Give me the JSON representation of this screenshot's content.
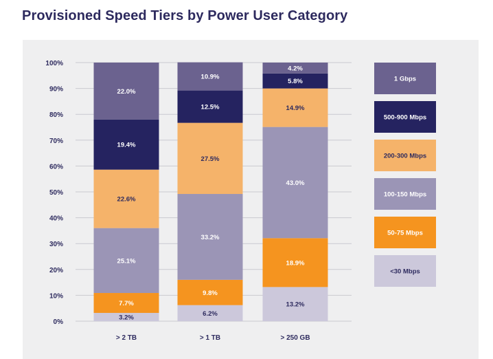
{
  "chart_data": {
    "type": "bar",
    "stacked": true,
    "title": "Provisioned Speed Tiers by Power User Category",
    "categories": [
      "> 2 TB",
      "> 1 TB",
      "> 250 GB"
    ],
    "ylim": [
      0,
      100
    ],
    "yticks": [
      "0%",
      "10%",
      "20%",
      "30%",
      "40%",
      "50%",
      "60%",
      "70%",
      "80%",
      "90%",
      "100%"
    ],
    "grid": true,
    "legend_position": "right",
    "series": [
      {
        "name": "<30 Mbps",
        "color": "#ccc8db",
        "label_color": "#2d2a5e",
        "values": [
          3.2,
          6.2,
          13.2
        ],
        "labels": [
          "3.2%",
          "6.2%",
          "13.2%"
        ]
      },
      {
        "name": "50-75 Mbps",
        "color": "#f5941f",
        "label_color": "#ffffff",
        "values": [
          7.7,
          9.8,
          18.9
        ],
        "labels": [
          "7.7%",
          "9.8%",
          "18.9%"
        ]
      },
      {
        "name": "100-150 Mbps",
        "color": "#9b95b6",
        "label_color": "#ffffff",
        "values": [
          25.1,
          33.2,
          43.0
        ],
        "labels": [
          "25.1%",
          "33.2%",
          "43.0%"
        ]
      },
      {
        "name": "200-300 Mbps",
        "color": "#f5b36a",
        "label_color": "#2d2a5e",
        "values": [
          22.6,
          27.5,
          14.9
        ],
        "labels": [
          "22.6%",
          "27.5%",
          "14.9%"
        ]
      },
      {
        "name": "500-900 Mbps",
        "color": "#252360",
        "label_color": "#ffffff",
        "values": [
          19.4,
          12.5,
          5.8
        ],
        "labels": [
          "19.4%",
          "12.5%",
          "5.8%"
        ]
      },
      {
        "name": "1 Gbps",
        "color": "#6b628f",
        "label_color": "#ffffff",
        "values": [
          22.0,
          10.9,
          4.2
        ],
        "labels": [
          "22.0%",
          "10.9%",
          "4.2%"
        ]
      }
    ]
  }
}
